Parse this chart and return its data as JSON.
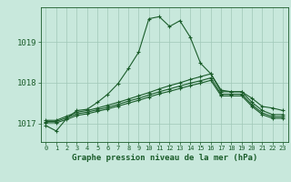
{
  "title": "Graphe pression niveau de la mer (hPa)",
  "ylabel_ticks": [
    1017,
    1018,
    1019
  ],
  "xlim": [
    -0.5,
    23.5
  ],
  "ylim": [
    1016.55,
    1019.85
  ],
  "background_color": "#c8e8dc",
  "grid_color": "#a0c8b8",
  "line_color": "#1a5c2a",
  "lines": [
    [
      1016.95,
      1016.82,
      1017.12,
      1017.32,
      1017.35,
      1017.52,
      1017.72,
      1017.98,
      1018.35,
      1018.75,
      1019.57,
      1019.62,
      1019.38,
      1019.52,
      1019.12,
      1018.48,
      1018.22,
      1017.82,
      1017.78,
      1017.78,
      1017.62,
      1017.42,
      1017.38,
      1017.32
    ],
    [
      1017.08,
      1017.08,
      1017.18,
      1017.28,
      1017.32,
      1017.38,
      1017.45,
      1017.52,
      1017.6,
      1017.68,
      1017.76,
      1017.85,
      1017.93,
      1018.0,
      1018.08,
      1018.15,
      1018.22,
      1017.78,
      1017.78,
      1017.78,
      1017.52,
      1017.32,
      1017.22,
      1017.22
    ],
    [
      1017.05,
      1017.05,
      1017.14,
      1017.24,
      1017.28,
      1017.34,
      1017.4,
      1017.47,
      1017.55,
      1017.62,
      1017.7,
      1017.78,
      1017.85,
      1017.92,
      1017.99,
      1018.05,
      1018.12,
      1017.72,
      1017.72,
      1017.72,
      1017.46,
      1017.26,
      1017.17,
      1017.17
    ],
    [
      1017.02,
      1017.02,
      1017.1,
      1017.2,
      1017.24,
      1017.3,
      1017.36,
      1017.43,
      1017.5,
      1017.57,
      1017.65,
      1017.73,
      1017.79,
      1017.86,
      1017.93,
      1017.99,
      1018.06,
      1017.68,
      1017.68,
      1017.68,
      1017.42,
      1017.22,
      1017.13,
      1017.13
    ]
  ],
  "marker": "+",
  "marker_size": 3.5,
  "line_width": 0.8
}
